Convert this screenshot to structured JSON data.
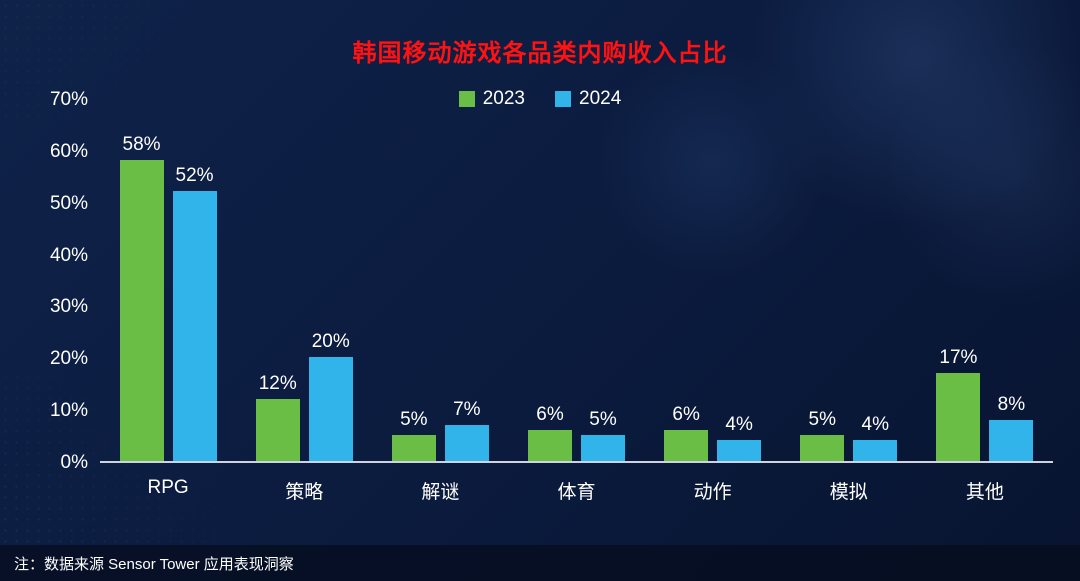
{
  "title": "韩国移动游戏各品类内购收入占比",
  "legend": [
    {
      "label": "2023",
      "color": "#6ABE45"
    },
    {
      "label": "2024",
      "color": "#31B4EA"
    }
  ],
  "footer": {
    "note": "注：数据来源 Sensor Tower 应用表现洞察"
  },
  "colors": {
    "background": "#0B1B3E",
    "title_text": "#FF1212",
    "axis_text": "#FFFFFF",
    "baseline": "#CDD3DF",
    "series_2023": "#6ABE45",
    "series_2024": "#31B4EA",
    "footer_bg": "#050C1E"
  },
  "chart_data": {
    "type": "bar",
    "title": "韩国移动游戏各品类内购收入占比",
    "categories": [
      "RPG",
      "策略",
      "解谜",
      "体育",
      "动作",
      "模拟",
      "其他"
    ],
    "series": [
      {
        "name": "2023",
        "color": "#6ABE45",
        "values": [
          58,
          12,
          5,
          6,
          6,
          5,
          17
        ]
      },
      {
        "name": "2024",
        "color": "#31B4EA",
        "values": [
          52,
          20,
          7,
          5,
          4,
          4,
          8
        ]
      }
    ],
    "value_suffix": "%",
    "xlabel": "",
    "ylabel": "",
    "ylim": [
      0,
      70
    ],
    "yticks": [
      0,
      10,
      20,
      30,
      40,
      50,
      60,
      70
    ],
    "ytick_suffix": "%",
    "grid": false,
    "legend_position": "top"
  }
}
